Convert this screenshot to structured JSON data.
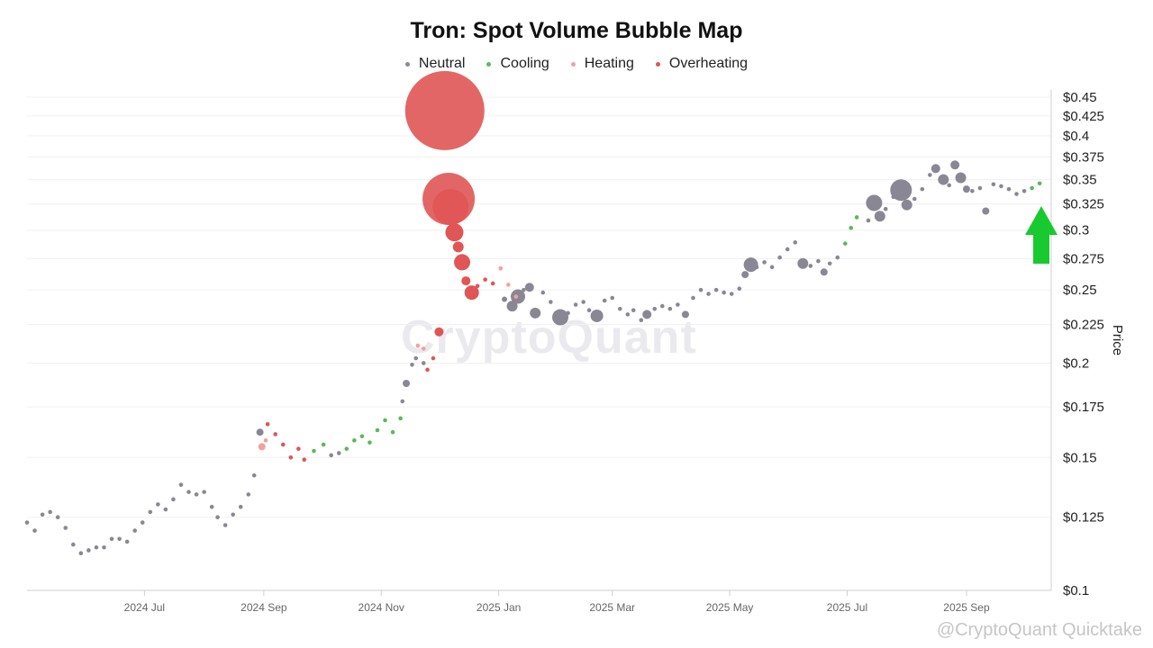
{
  "chart_data": {
    "type": "scatter",
    "title": "Tron: Spot Volume Bubble Map",
    "y_scale": "log",
    "ylabel": "Price",
    "ylim": [
      0.1,
      0.45
    ],
    "y_ticks": [
      "$0.45",
      "$0.425",
      "$0.4",
      "$0.375",
      "$0.35",
      "$0.325",
      "$0.3",
      "$0.275",
      "$0.25",
      "$0.225",
      "$0.2",
      "$0.175",
      "$0.15",
      "$0.125",
      "$0.1"
    ],
    "y_tick_values": [
      0.45,
      0.425,
      0.4,
      0.375,
      0.35,
      0.325,
      0.3,
      0.275,
      0.25,
      0.225,
      0.2,
      0.175,
      0.15,
      0.125,
      0.1
    ],
    "x_ticks": [
      "2024 Jul",
      "2024 Sep",
      "2024 Nov",
      "2025 Jan",
      "2025 Mar",
      "2025 May",
      "2025 Jul",
      "2025 Sep"
    ],
    "x_tick_dates": [
      "2024-07-01",
      "2024-09-01",
      "2024-11-01",
      "2025-01-01",
      "2025-03-01",
      "2025-05-01",
      "2025-07-01",
      "2025-09-01"
    ],
    "xlim": [
      "2024-05-01",
      "2025-10-15"
    ],
    "grid": true,
    "legend": "top-center",
    "series": [
      {
        "name": "Neutral",
        "color": "#8a8795",
        "points": [
          {
            "x": "2024-05-01",
            "y": 0.123
          },
          {
            "x": "2024-05-05",
            "y": 0.12
          },
          {
            "x": "2024-05-09",
            "y": 0.126
          },
          {
            "x": "2024-05-13",
            "y": 0.127
          },
          {
            "x": "2024-05-17",
            "y": 0.125
          },
          {
            "x": "2024-05-21",
            "y": 0.121
          },
          {
            "x": "2024-05-25",
            "y": 0.115
          },
          {
            "x": "2024-05-29",
            "y": 0.112
          },
          {
            "x": "2024-06-02",
            "y": 0.113
          },
          {
            "x": "2024-06-06",
            "y": 0.114
          },
          {
            "x": "2024-06-10",
            "y": 0.114
          },
          {
            "x": "2024-06-14",
            "y": 0.117
          },
          {
            "x": "2024-06-18",
            "y": 0.117
          },
          {
            "x": "2024-06-22",
            "y": 0.116
          },
          {
            "x": "2024-06-26",
            "y": 0.12
          },
          {
            "x": "2024-06-30",
            "y": 0.123
          },
          {
            "x": "2024-07-04",
            "y": 0.127
          },
          {
            "x": "2024-07-08",
            "y": 0.13
          },
          {
            "x": "2024-07-12",
            "y": 0.128
          },
          {
            "x": "2024-07-16",
            "y": 0.132
          },
          {
            "x": "2024-07-20",
            "y": 0.138
          },
          {
            "x": "2024-07-24",
            "y": 0.135
          },
          {
            "x": "2024-07-28",
            "y": 0.134
          },
          {
            "x": "2024-08-01",
            "y": 0.135
          },
          {
            "x": "2024-08-05",
            "y": 0.129
          },
          {
            "x": "2024-08-08",
            "y": 0.125
          },
          {
            "x": "2024-08-12",
            "y": 0.122
          },
          {
            "x": "2024-08-16",
            "y": 0.126
          },
          {
            "x": "2024-08-20",
            "y": 0.129
          },
          {
            "x": "2024-08-24",
            "y": 0.134
          },
          {
            "x": "2024-08-27",
            "y": 0.142
          },
          {
            "x": "2024-08-30",
            "y": 0.162,
            "s": 4
          },
          {
            "x": "2024-10-06",
            "y": 0.151
          },
          {
            "x": "2024-10-10",
            "y": 0.152
          },
          {
            "x": "2024-11-12",
            "y": 0.178
          },
          {
            "x": "2024-11-14",
            "y": 0.188,
            "s": 4
          },
          {
            "x": "2024-11-17",
            "y": 0.199
          },
          {
            "x": "2024-11-19",
            "y": 0.203
          },
          {
            "x": "2024-11-23",
            "y": 0.2
          },
          {
            "x": "2025-01-04",
            "y": 0.243,
            "s": 3
          },
          {
            "x": "2025-01-08",
            "y": 0.238,
            "s": 6
          },
          {
            "x": "2025-01-11",
            "y": 0.245,
            "s": 8
          },
          {
            "x": "2025-01-14",
            "y": 0.25
          },
          {
            "x": "2025-01-17",
            "y": 0.252,
            "s": 5
          },
          {
            "x": "2025-01-20",
            "y": 0.233,
            "s": 6
          },
          {
            "x": "2025-01-24",
            "y": 0.248
          },
          {
            "x": "2025-01-28",
            "y": 0.241
          },
          {
            "x": "2025-02-02",
            "y": 0.23,
            "s": 9
          },
          {
            "x": "2025-02-06",
            "y": 0.233
          },
          {
            "x": "2025-02-10",
            "y": 0.239
          },
          {
            "x": "2025-02-14",
            "y": 0.241
          },
          {
            "x": "2025-02-17",
            "y": 0.235
          },
          {
            "x": "2025-02-21",
            "y": 0.231,
            "s": 7
          },
          {
            "x": "2025-02-25",
            "y": 0.242
          },
          {
            "x": "2025-03-01",
            "y": 0.244
          },
          {
            "x": "2025-03-05",
            "y": 0.236
          },
          {
            "x": "2025-03-09",
            "y": 0.232
          },
          {
            "x": "2025-03-12",
            "y": 0.235
          },
          {
            "x": "2025-03-16",
            "y": 0.228
          },
          {
            "x": "2025-03-19",
            "y": 0.232,
            "s": 5
          },
          {
            "x": "2025-03-23",
            "y": 0.236
          },
          {
            "x": "2025-03-27",
            "y": 0.238
          },
          {
            "x": "2025-03-31",
            "y": 0.236
          },
          {
            "x": "2025-04-04",
            "y": 0.239
          },
          {
            "x": "2025-04-08",
            "y": 0.232,
            "s": 4
          },
          {
            "x": "2025-04-12",
            "y": 0.244
          },
          {
            "x": "2025-04-16",
            "y": 0.25
          },
          {
            "x": "2025-04-20",
            "y": 0.247
          },
          {
            "x": "2025-04-24",
            "y": 0.25
          },
          {
            "x": "2025-04-28",
            "y": 0.248
          },
          {
            "x": "2025-05-02",
            "y": 0.247
          },
          {
            "x": "2025-05-06",
            "y": 0.251
          },
          {
            "x": "2025-05-09",
            "y": 0.262,
            "s": 4
          },
          {
            "x": "2025-05-12",
            "y": 0.27,
            "s": 8
          },
          {
            "x": "2025-05-15",
            "y": 0.268
          },
          {
            "x": "2025-05-19",
            "y": 0.272
          },
          {
            "x": "2025-05-23",
            "y": 0.268
          },
          {
            "x": "2025-05-27",
            "y": 0.276
          },
          {
            "x": "2025-05-31",
            "y": 0.283
          },
          {
            "x": "2025-06-04",
            "y": 0.289
          },
          {
            "x": "2025-06-08",
            "y": 0.271,
            "s": 6
          },
          {
            "x": "2025-06-12",
            "y": 0.269
          },
          {
            "x": "2025-06-16",
            "y": 0.273
          },
          {
            "x": "2025-06-19",
            "y": 0.264,
            "s": 4
          },
          {
            "x": "2025-06-22",
            "y": 0.271
          },
          {
            "x": "2025-06-26",
            "y": 0.276
          },
          {
            "x": "2025-07-12",
            "y": 0.309
          },
          {
            "x": "2025-07-15",
            "y": 0.326,
            "s": 9
          },
          {
            "x": "2025-07-18",
            "y": 0.313,
            "s": 6
          },
          {
            "x": "2025-07-21",
            "y": 0.32
          },
          {
            "x": "2025-07-25",
            "y": 0.332
          },
          {
            "x": "2025-07-29",
            "y": 0.339,
            "s": 12
          },
          {
            "x": "2025-08-01",
            "y": 0.324,
            "s": 6
          },
          {
            "x": "2025-08-05",
            "y": 0.33
          },
          {
            "x": "2025-08-09",
            "y": 0.34
          },
          {
            "x": "2025-08-13",
            "y": 0.355
          },
          {
            "x": "2025-08-16",
            "y": 0.362,
            "s": 5
          },
          {
            "x": "2025-08-20",
            "y": 0.35,
            "s": 6
          },
          {
            "x": "2025-08-23",
            "y": 0.344
          },
          {
            "x": "2025-08-26",
            "y": 0.366,
            "s": 5
          },
          {
            "x": "2025-08-29",
            "y": 0.352,
            "s": 6
          },
          {
            "x": "2025-09-01",
            "y": 0.34,
            "s": 4
          },
          {
            "x": "2025-09-04",
            "y": 0.338
          },
          {
            "x": "2025-09-08",
            "y": 0.341
          },
          {
            "x": "2025-09-11",
            "y": 0.318,
            "s": 4
          },
          {
            "x": "2025-09-15",
            "y": 0.345
          },
          {
            "x": "2025-09-19",
            "y": 0.343
          },
          {
            "x": "2025-09-23",
            "y": 0.34
          },
          {
            "x": "2025-09-27",
            "y": 0.335
          },
          {
            "x": "2025-10-01",
            "y": 0.338
          }
        ]
      },
      {
        "name": "Cooling",
        "color": "#5cb85c",
        "points": [
          {
            "x": "2024-09-27",
            "y": 0.153
          },
          {
            "x": "2024-10-02",
            "y": 0.156
          },
          {
            "x": "2024-10-14",
            "y": 0.154
          },
          {
            "x": "2024-10-18",
            "y": 0.158
          },
          {
            "x": "2024-10-22",
            "y": 0.16
          },
          {
            "x": "2024-10-26",
            "y": 0.157
          },
          {
            "x": "2024-10-30",
            "y": 0.163
          },
          {
            "x": "2024-11-03",
            "y": 0.168
          },
          {
            "x": "2024-11-07",
            "y": 0.162
          },
          {
            "x": "2024-11-11",
            "y": 0.169
          },
          {
            "x": "2025-06-30",
            "y": 0.288
          },
          {
            "x": "2025-07-03",
            "y": 0.302
          },
          {
            "x": "2025-07-06",
            "y": 0.312
          },
          {
            "x": "2025-10-05",
            "y": 0.341
          },
          {
            "x": "2025-10-09",
            "y": 0.346
          }
        ]
      },
      {
        "name": "Heating",
        "color": "#f2a0a0",
        "points": [
          {
            "x": "2024-08-31",
            "y": 0.155,
            "s": 4
          },
          {
            "x": "2024-09-02",
            "y": 0.158
          },
          {
            "x": "2024-11-20",
            "y": 0.211
          },
          {
            "x": "2024-11-23",
            "y": 0.209
          },
          {
            "x": "2025-01-02",
            "y": 0.267
          },
          {
            "x": "2025-01-06",
            "y": 0.254
          },
          {
            "x": "2025-01-10",
            "y": 0.245
          }
        ]
      },
      {
        "name": "Overheating",
        "color": "#e05555",
        "points": [
          {
            "x": "2024-09-03",
            "y": 0.166
          },
          {
            "x": "2024-09-07",
            "y": 0.161
          },
          {
            "x": "2024-09-11",
            "y": 0.156
          },
          {
            "x": "2024-09-15",
            "y": 0.15
          },
          {
            "x": "2024-09-19",
            "y": 0.154
          },
          {
            "x": "2024-09-22",
            "y": 0.149
          },
          {
            "x": "2024-11-25",
            "y": 0.196
          },
          {
            "x": "2024-11-28",
            "y": 0.203
          },
          {
            "x": "2024-12-01",
            "y": 0.22,
            "s": 5
          },
          {
            "x": "2024-12-04",
            "y": 0.432,
            "s": 44
          },
          {
            "x": "2024-12-06",
            "y": 0.33,
            "s": 29
          },
          {
            "x": "2024-12-07",
            "y": 0.322,
            "s": 20
          },
          {
            "x": "2024-12-09",
            "y": 0.298,
            "s": 10
          },
          {
            "x": "2024-12-11",
            "y": 0.285,
            "s": 6
          },
          {
            "x": "2024-12-13",
            "y": 0.272,
            "s": 9
          },
          {
            "x": "2024-12-15",
            "y": 0.257,
            "s": 5
          },
          {
            "x": "2024-12-18",
            "y": 0.248,
            "s": 8
          },
          {
            "x": "2024-12-21",
            "y": 0.253
          },
          {
            "x": "2024-12-25",
            "y": 0.258
          },
          {
            "x": "2024-12-29",
            "y": 0.255
          }
        ]
      }
    ]
  },
  "watermark": "CryptoQuant",
  "credit": "@CryptoQuant Quicktake"
}
